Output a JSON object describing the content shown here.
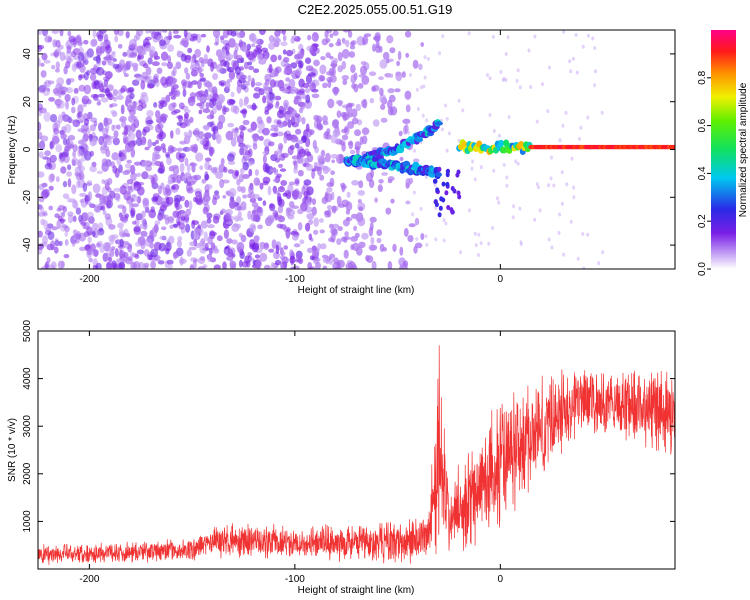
{
  "page_title": "C2E2.2025.055.00.51.G19",
  "colors": {
    "background": "#ffffff",
    "axis": "#000000",
    "snr_line": "#f03232",
    "noise_light": "#d9bff5",
    "noise_mid": "#a66bf0",
    "noise_dark": "#7a1fe6"
  },
  "chart_data": [
    {
      "type": "heatmap",
      "title": "C2E2.2025.055.00.51.G19",
      "xlabel": "Height of straight line (km)",
      "ylabel": "Frequency (Hz)",
      "xlim": [
        -225,
        85
      ],
      "ylim": [
        -50,
        50
      ],
      "x_ticks": [
        -200,
        -100,
        0
      ],
      "y_ticks": [
        -40,
        -20,
        0,
        20,
        40
      ],
      "colorbar": {
        "label": "Normalized spectral amplitude",
        "range": [
          0,
          1
        ],
        "ticks": [
          "0.0",
          "0.2",
          "0.4",
          "0.6",
          "0.8"
        ],
        "colormap": "rainbow (purple-blue-cyan-green-yellow-red-magenta)"
      },
      "features": {
        "noise_region_x": [
          -225,
          -40
        ],
        "tone_line": {
          "x": [
            -20,
            85
          ],
          "frequency": 1,
          "amplitude": 0.9
        },
        "split_branches": [
          {
            "x": [
              -75,
              -30
            ],
            "frequency_start": -5,
            "frequency_end": 10
          },
          {
            "x": [
              -75,
              -30
            ],
            "frequency_start": -5,
            "frequency_end": -10
          }
        ]
      },
      "grid": false,
      "legend": "colorbar-right"
    },
    {
      "type": "line",
      "xlabel": "Height of straight line (km)",
      "ylabel": "SNR (10 * v/v)",
      "xlim": [
        -225,
        85
      ],
      "ylim": [
        0,
        5000
      ],
      "x_ticks": [
        -200,
        -100,
        0
      ],
      "y_ticks": [
        1000,
        2000,
        3000,
        4000,
        5000
      ],
      "series": [
        {
          "color": "#f03232",
          "envelope": {
            "x": [
              -225,
              -150,
              -140,
              -100,
              -50,
              -35,
              -30,
              -25,
              0,
              20,
              40,
              50,
              60,
              85
            ],
            "mean": [
              300,
              400,
              600,
              550,
              550,
              700,
              2500,
              1000,
              2200,
              3000,
              3600,
              3400,
              3500,
              3300
            ],
            "spread": [
              250,
              250,
              400,
              400,
              500,
              600,
              2400,
              900,
              1500,
              1200,
              900,
              800,
              900,
              1000
            ]
          }
        }
      ],
      "grid": false
    }
  ]
}
